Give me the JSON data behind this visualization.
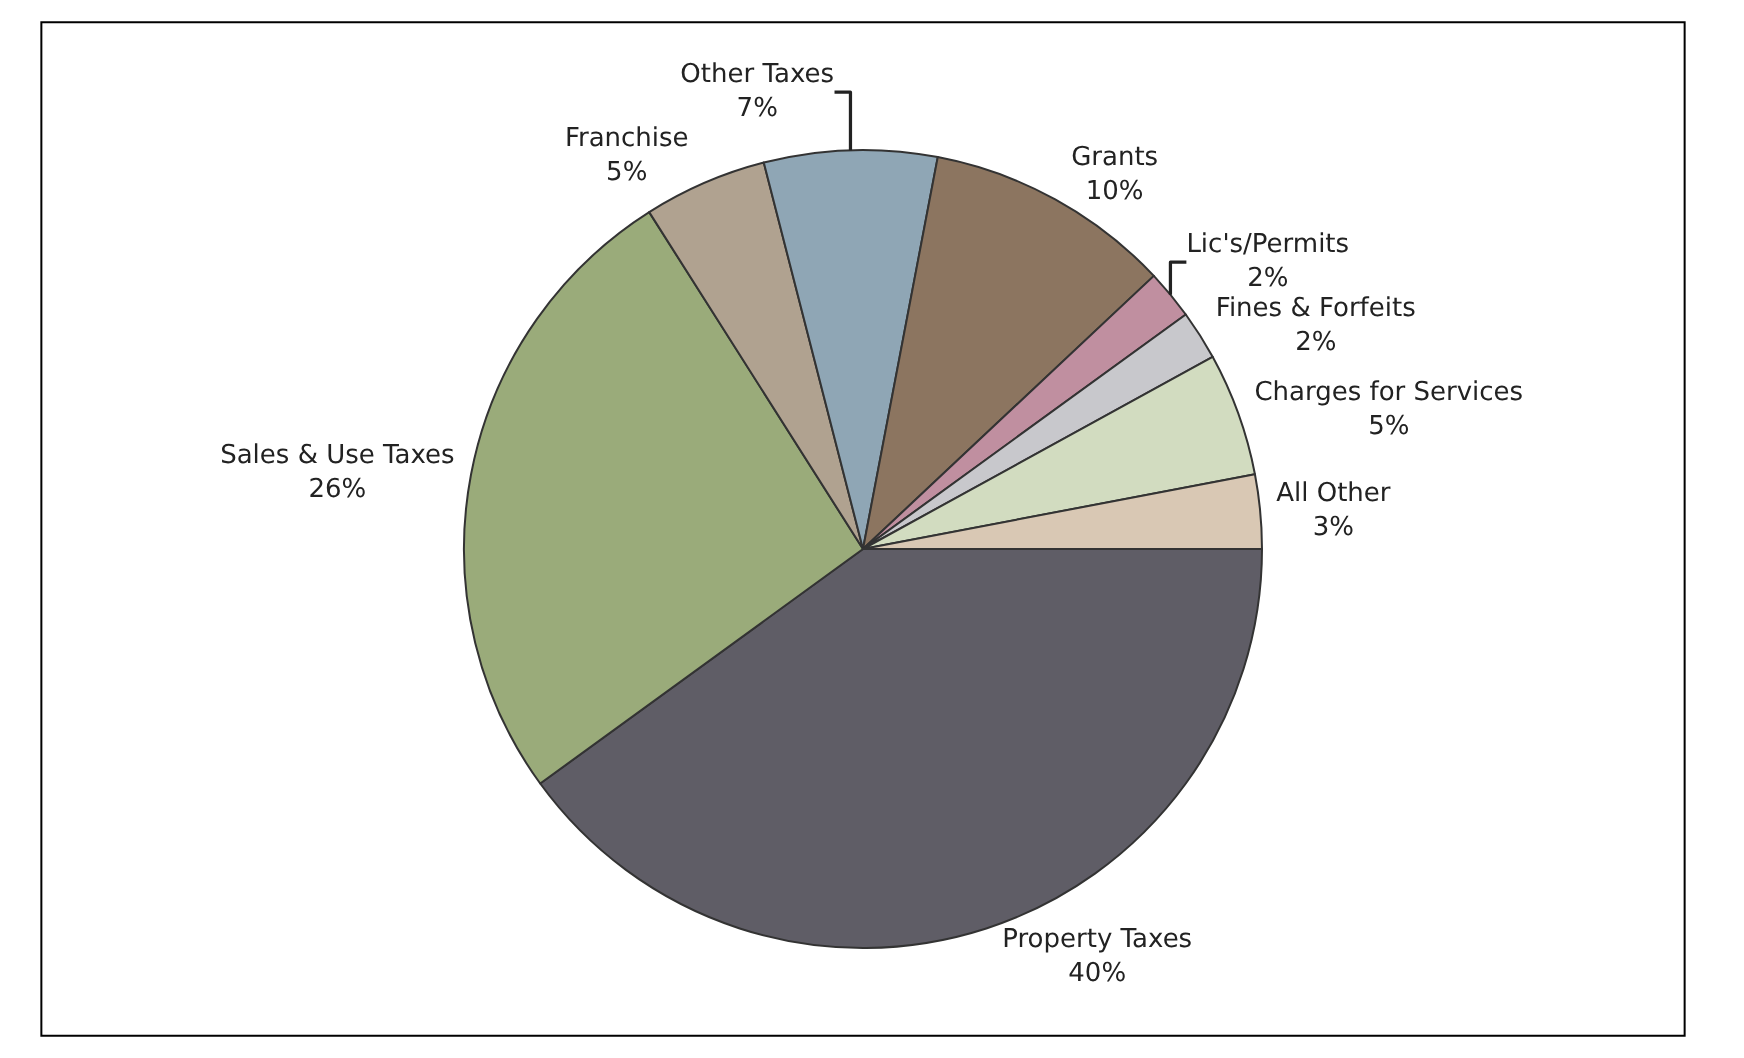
{
  "chart_data": {
    "type": "pie",
    "categories": [
      "Property Taxes",
      "Sales & Use Taxes",
      "Franchise",
      "Other Taxes",
      "Grants",
      "Lic's/Permits",
      "Fines & Forfeits",
      "Charges for Services",
      "All Other"
    ],
    "values": [
      40,
      26,
      5,
      7,
      10,
      2,
      2,
      5,
      3
    ],
    "value_labels": [
      "40%",
      "26%",
      "5%",
      "7%",
      "10%",
      "2%",
      "2%",
      "5%",
      "3%"
    ],
    "colors": [
      "#5f5d66",
      "#9aab7a",
      "#b0a290",
      "#8fa6b5",
      "#8c7560",
      "#c08fa0",
      "#c8c8cc",
      "#d2dcc0",
      "#d9c8b4"
    ],
    "legend": false
  }
}
